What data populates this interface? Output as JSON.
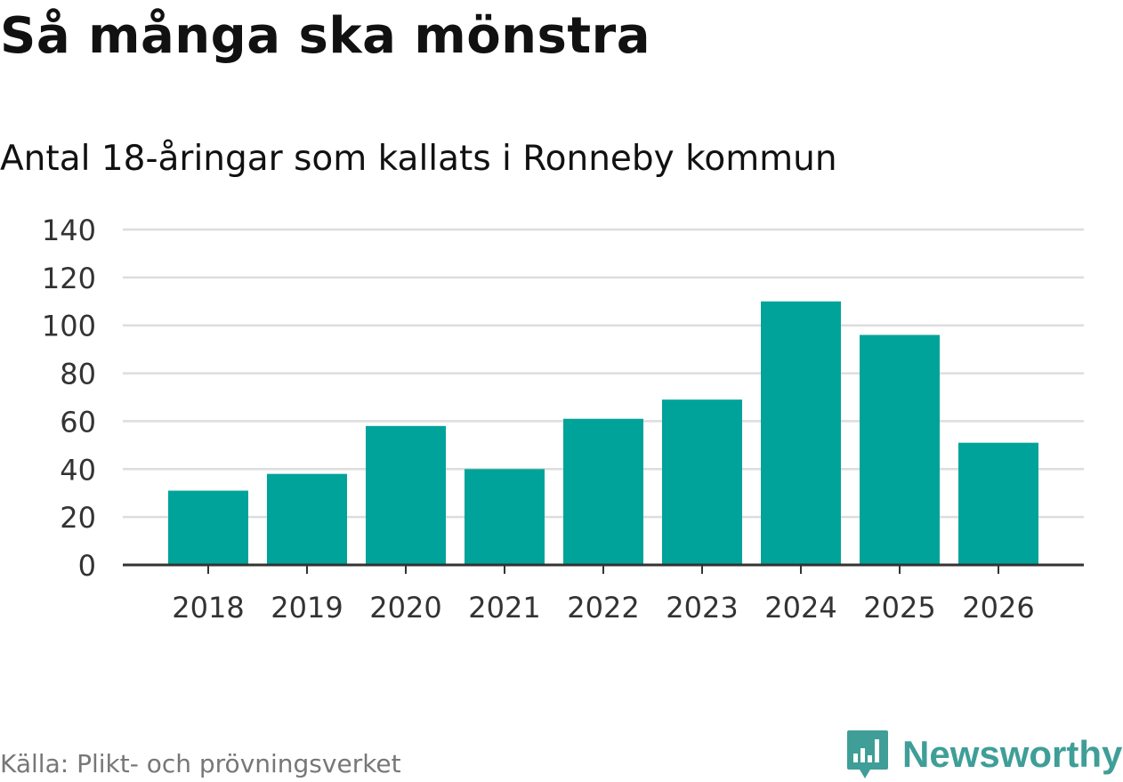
{
  "title": "Så många ska mönstra",
  "subtitle": "Antal 18-åringar som kallats i Ronneby kommun",
  "source": "Källa: Plikt- och prövningsverket",
  "brand": {
    "name": "Newsworthy",
    "icon": "newsworthy-logo-icon"
  },
  "colors": {
    "bar": "#00a39a",
    "grid": "#dddddd",
    "axis": "#333333",
    "brand": "#3f9e98"
  },
  "chart_data": {
    "type": "bar",
    "title": "Så många ska mönstra",
    "subtitle": "Antal 18-åringar som kallats i Ronneby kommun",
    "categories": [
      "2018",
      "2019",
      "2020",
      "2021",
      "2022",
      "2023",
      "2024",
      "2025",
      "2026"
    ],
    "values": [
      31,
      38,
      58,
      40,
      61,
      69,
      110,
      96,
      51
    ],
    "yticks": [
      0,
      20,
      40,
      60,
      80,
      100,
      120,
      140
    ],
    "ylim": [
      0,
      140
    ],
    "xlabel": "",
    "ylabel": "",
    "grid": true,
    "legend": "none"
  }
}
